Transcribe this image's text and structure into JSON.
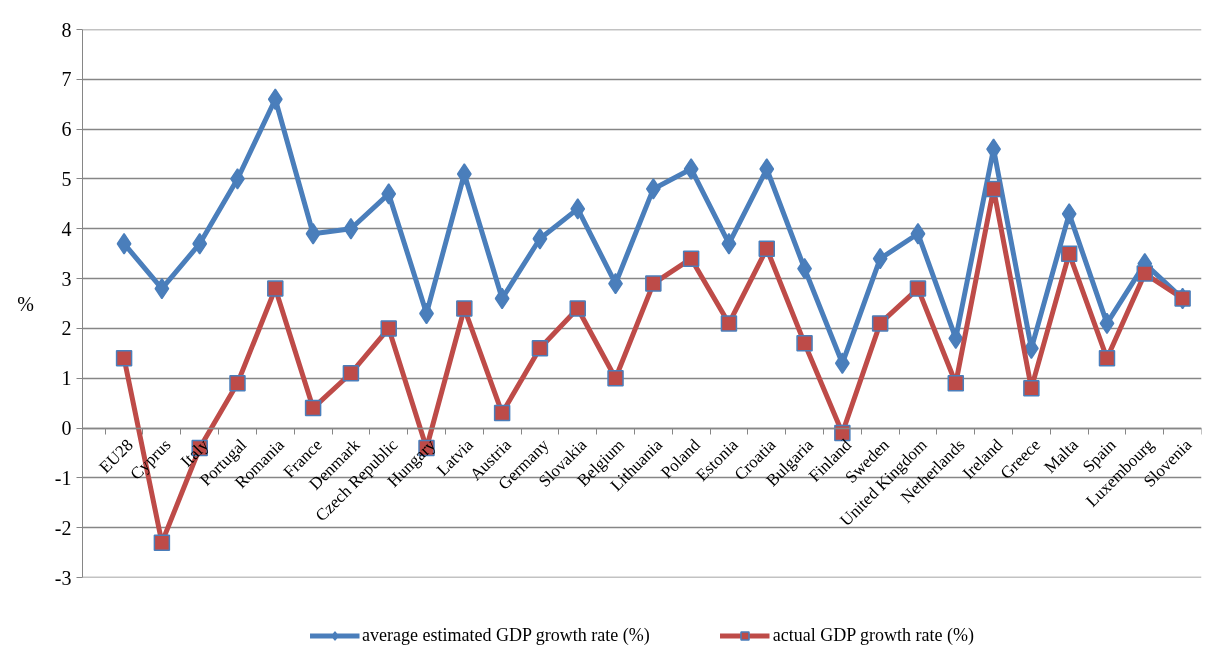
{
  "chart_data": {
    "type": "line",
    "ylabel": "%",
    "categories": [
      "EU28",
      "Cyprus",
      "Italy",
      "Portugal",
      "Romania",
      "France",
      "Denmark",
      "Czech Republic",
      "Hungary",
      "Latvia",
      "Austria",
      "Germany",
      "Slovakia",
      "Belgium",
      "Lithuania",
      "Poland",
      "Estonia",
      "Croatia",
      "Bulgaria",
      "Finland",
      "Sweden",
      "United Kingdom",
      "Netherlands",
      "Ireland",
      "Greece",
      "Malta",
      "Spain",
      "Luxembourg",
      "Slovenia"
    ],
    "ylim": [
      -3,
      8
    ],
    "yticks": [
      -3,
      -2,
      -1,
      0,
      1,
      2,
      3,
      4,
      5,
      6,
      7,
      8
    ],
    "grid": "y",
    "legend": "bottom",
    "line_style": "solid",
    "series": [
      {
        "name": "average estimated GDP growth rate (%)",
        "color": "#4a7ebb",
        "marker": "diamond",
        "values": [
          3.7,
          2.8,
          3.7,
          5.0,
          6.6,
          3.9,
          4.0,
          4.7,
          2.3,
          5.1,
          2.6,
          3.8,
          4.4,
          2.9,
          4.8,
          5.2,
          3.7,
          5.2,
          3.2,
          1.3,
          3.4,
          3.9,
          1.8,
          5.6,
          1.6,
          4.3,
          2.1,
          3.3,
          2.6
        ]
      },
      {
        "name": "actual GDP growth rate (%)",
        "color": "#be4b48",
        "marker": "square",
        "values": [
          1.4,
          -2.3,
          -0.4,
          0.9,
          2.8,
          0.4,
          1.1,
          2.0,
          -0.4,
          2.4,
          0.3,
          1.6,
          2.4,
          1.0,
          2.9,
          3.4,
          2.1,
          3.6,
          1.7,
          -0.1,
          2.1,
          2.8,
          0.9,
          4.8,
          0.8,
          3.5,
          1.4,
          3.1,
          2.6
        ]
      }
    ]
  }
}
